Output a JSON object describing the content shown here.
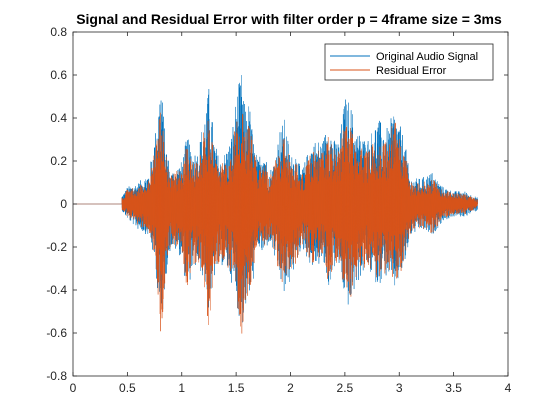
{
  "chart_data": {
    "type": "line",
    "title": "Signal and Residual Error with filter order p = 4frame size = 3ms",
    "xlabel": "",
    "ylabel": "",
    "xlim": [
      0,
      4
    ],
    "ylim": [
      -0.8,
      0.8
    ],
    "xticks": [
      0,
      0.5,
      1,
      1.5,
      2,
      2.5,
      3,
      3.5,
      4
    ],
    "yticks": [
      -0.8,
      -0.6,
      -0.4,
      -0.2,
      0,
      0.2,
      0.4,
      0.6,
      0.8
    ],
    "xtick_labels": [
      "0",
      "0.5",
      "1",
      "1.5",
      "2",
      "2.5",
      "3",
      "3.5",
      "4"
    ],
    "ytick_labels": [
      "-0.8",
      "-0.6",
      "-0.4",
      "-0.2",
      "0",
      "0.2",
      "0.4",
      "0.6",
      "0.8"
    ],
    "grid": false,
    "legend_position": "top-right",
    "series": [
      {
        "name": "Original Audio Signal",
        "color": "#0072BD",
        "envelope": {
          "x": [
            0.0,
            0.45,
            0.5,
            0.6,
            0.7,
            0.76,
            0.81,
            0.85,
            0.9,
            1.0,
            1.05,
            1.1,
            1.15,
            1.2,
            1.25,
            1.3,
            1.35,
            1.4,
            1.45,
            1.5,
            1.55,
            1.58,
            1.62,
            1.66,
            1.7,
            1.75,
            1.8,
            1.85,
            1.9,
            1.95,
            2.0,
            2.05,
            2.1,
            2.2,
            2.3,
            2.35,
            2.4,
            2.45,
            2.5,
            2.55,
            2.6,
            2.7,
            2.8,
            2.9,
            2.95,
            3.0,
            3.05,
            3.1,
            3.2,
            3.3,
            3.4,
            3.5,
            3.6,
            3.72
          ],
          "max": [
            0.0,
            0.04,
            0.08,
            0.1,
            0.15,
            0.35,
            0.6,
            0.3,
            0.15,
            0.2,
            0.32,
            0.25,
            0.25,
            0.4,
            0.55,
            0.3,
            0.2,
            0.25,
            0.3,
            0.5,
            0.62,
            0.45,
            0.48,
            0.3,
            0.2,
            0.3,
            0.15,
            0.2,
            0.35,
            0.4,
            0.22,
            0.25,
            0.15,
            0.3,
            0.3,
            0.4,
            0.3,
            0.3,
            0.5,
            0.48,
            0.35,
            0.3,
            0.4,
            0.35,
            0.45,
            0.38,
            0.3,
            0.12,
            0.12,
            0.15,
            0.08,
            0.06,
            0.06,
            0.03
          ],
          "min": [
            0.0,
            -0.03,
            -0.07,
            -0.12,
            -0.15,
            -0.3,
            -0.62,
            -0.35,
            -0.2,
            -0.25,
            -0.42,
            -0.3,
            -0.3,
            -0.35,
            -0.5,
            -0.35,
            -0.28,
            -0.3,
            -0.35,
            -0.45,
            -0.6,
            -0.5,
            -0.45,
            -0.35,
            -0.2,
            -0.25,
            -0.18,
            -0.25,
            -0.35,
            -0.45,
            -0.35,
            -0.3,
            -0.2,
            -0.3,
            -0.28,
            -0.4,
            -0.3,
            -0.3,
            -0.45,
            -0.5,
            -0.38,
            -0.3,
            -0.38,
            -0.33,
            -0.42,
            -0.35,
            -0.3,
            -0.15,
            -0.12,
            -0.15,
            -0.08,
            -0.06,
            -0.06,
            -0.03
          ]
        }
      },
      {
        "name": "Residual Error",
        "color": "#D95319",
        "envelope": {
          "x": [
            0.0,
            0.45,
            0.5,
            0.6,
            0.7,
            0.76,
            0.81,
            0.85,
            0.9,
            1.0,
            1.05,
            1.1,
            1.15,
            1.2,
            1.25,
            1.3,
            1.35,
            1.4,
            1.45,
            1.5,
            1.55,
            1.58,
            1.62,
            1.66,
            1.7,
            1.75,
            1.8,
            1.85,
            1.9,
            1.95,
            2.0,
            2.05,
            2.1,
            2.2,
            2.3,
            2.35,
            2.4,
            2.45,
            2.5,
            2.55,
            2.6,
            2.7,
            2.8,
            2.9,
            2.95,
            3.0,
            3.05,
            3.1,
            3.2,
            3.3,
            3.4,
            3.5,
            3.6,
            3.72
          ],
          "max": [
            0.0,
            0.03,
            0.07,
            0.08,
            0.12,
            0.3,
            0.45,
            0.28,
            0.13,
            0.18,
            0.28,
            0.22,
            0.22,
            0.34,
            0.42,
            0.26,
            0.18,
            0.2,
            0.25,
            0.38,
            0.45,
            0.38,
            0.4,
            0.26,
            0.16,
            0.25,
            0.12,
            0.18,
            0.28,
            0.32,
            0.2,
            0.22,
            0.13,
            0.25,
            0.25,
            0.32,
            0.26,
            0.27,
            0.4,
            0.4,
            0.3,
            0.25,
            0.33,
            0.3,
            0.4,
            0.35,
            0.28,
            0.1,
            0.1,
            0.12,
            0.07,
            0.05,
            0.05,
            0.02
          ],
          "min": [
            0.0,
            -0.03,
            -0.06,
            -0.1,
            -0.13,
            -0.28,
            -0.65,
            -0.33,
            -0.18,
            -0.22,
            -0.4,
            -0.28,
            -0.28,
            -0.32,
            -0.62,
            -0.33,
            -0.26,
            -0.28,
            -0.33,
            -0.42,
            -0.62,
            -0.48,
            -0.42,
            -0.33,
            -0.18,
            -0.23,
            -0.17,
            -0.23,
            -0.33,
            -0.42,
            -0.33,
            -0.28,
            -0.18,
            -0.28,
            -0.26,
            -0.38,
            -0.28,
            -0.28,
            -0.42,
            -0.52,
            -0.36,
            -0.28,
            -0.36,
            -0.31,
            -0.4,
            -0.33,
            -0.28,
            -0.14,
            -0.11,
            -0.14,
            -0.07,
            -0.05,
            -0.05,
            -0.02
          ]
        }
      }
    ]
  }
}
